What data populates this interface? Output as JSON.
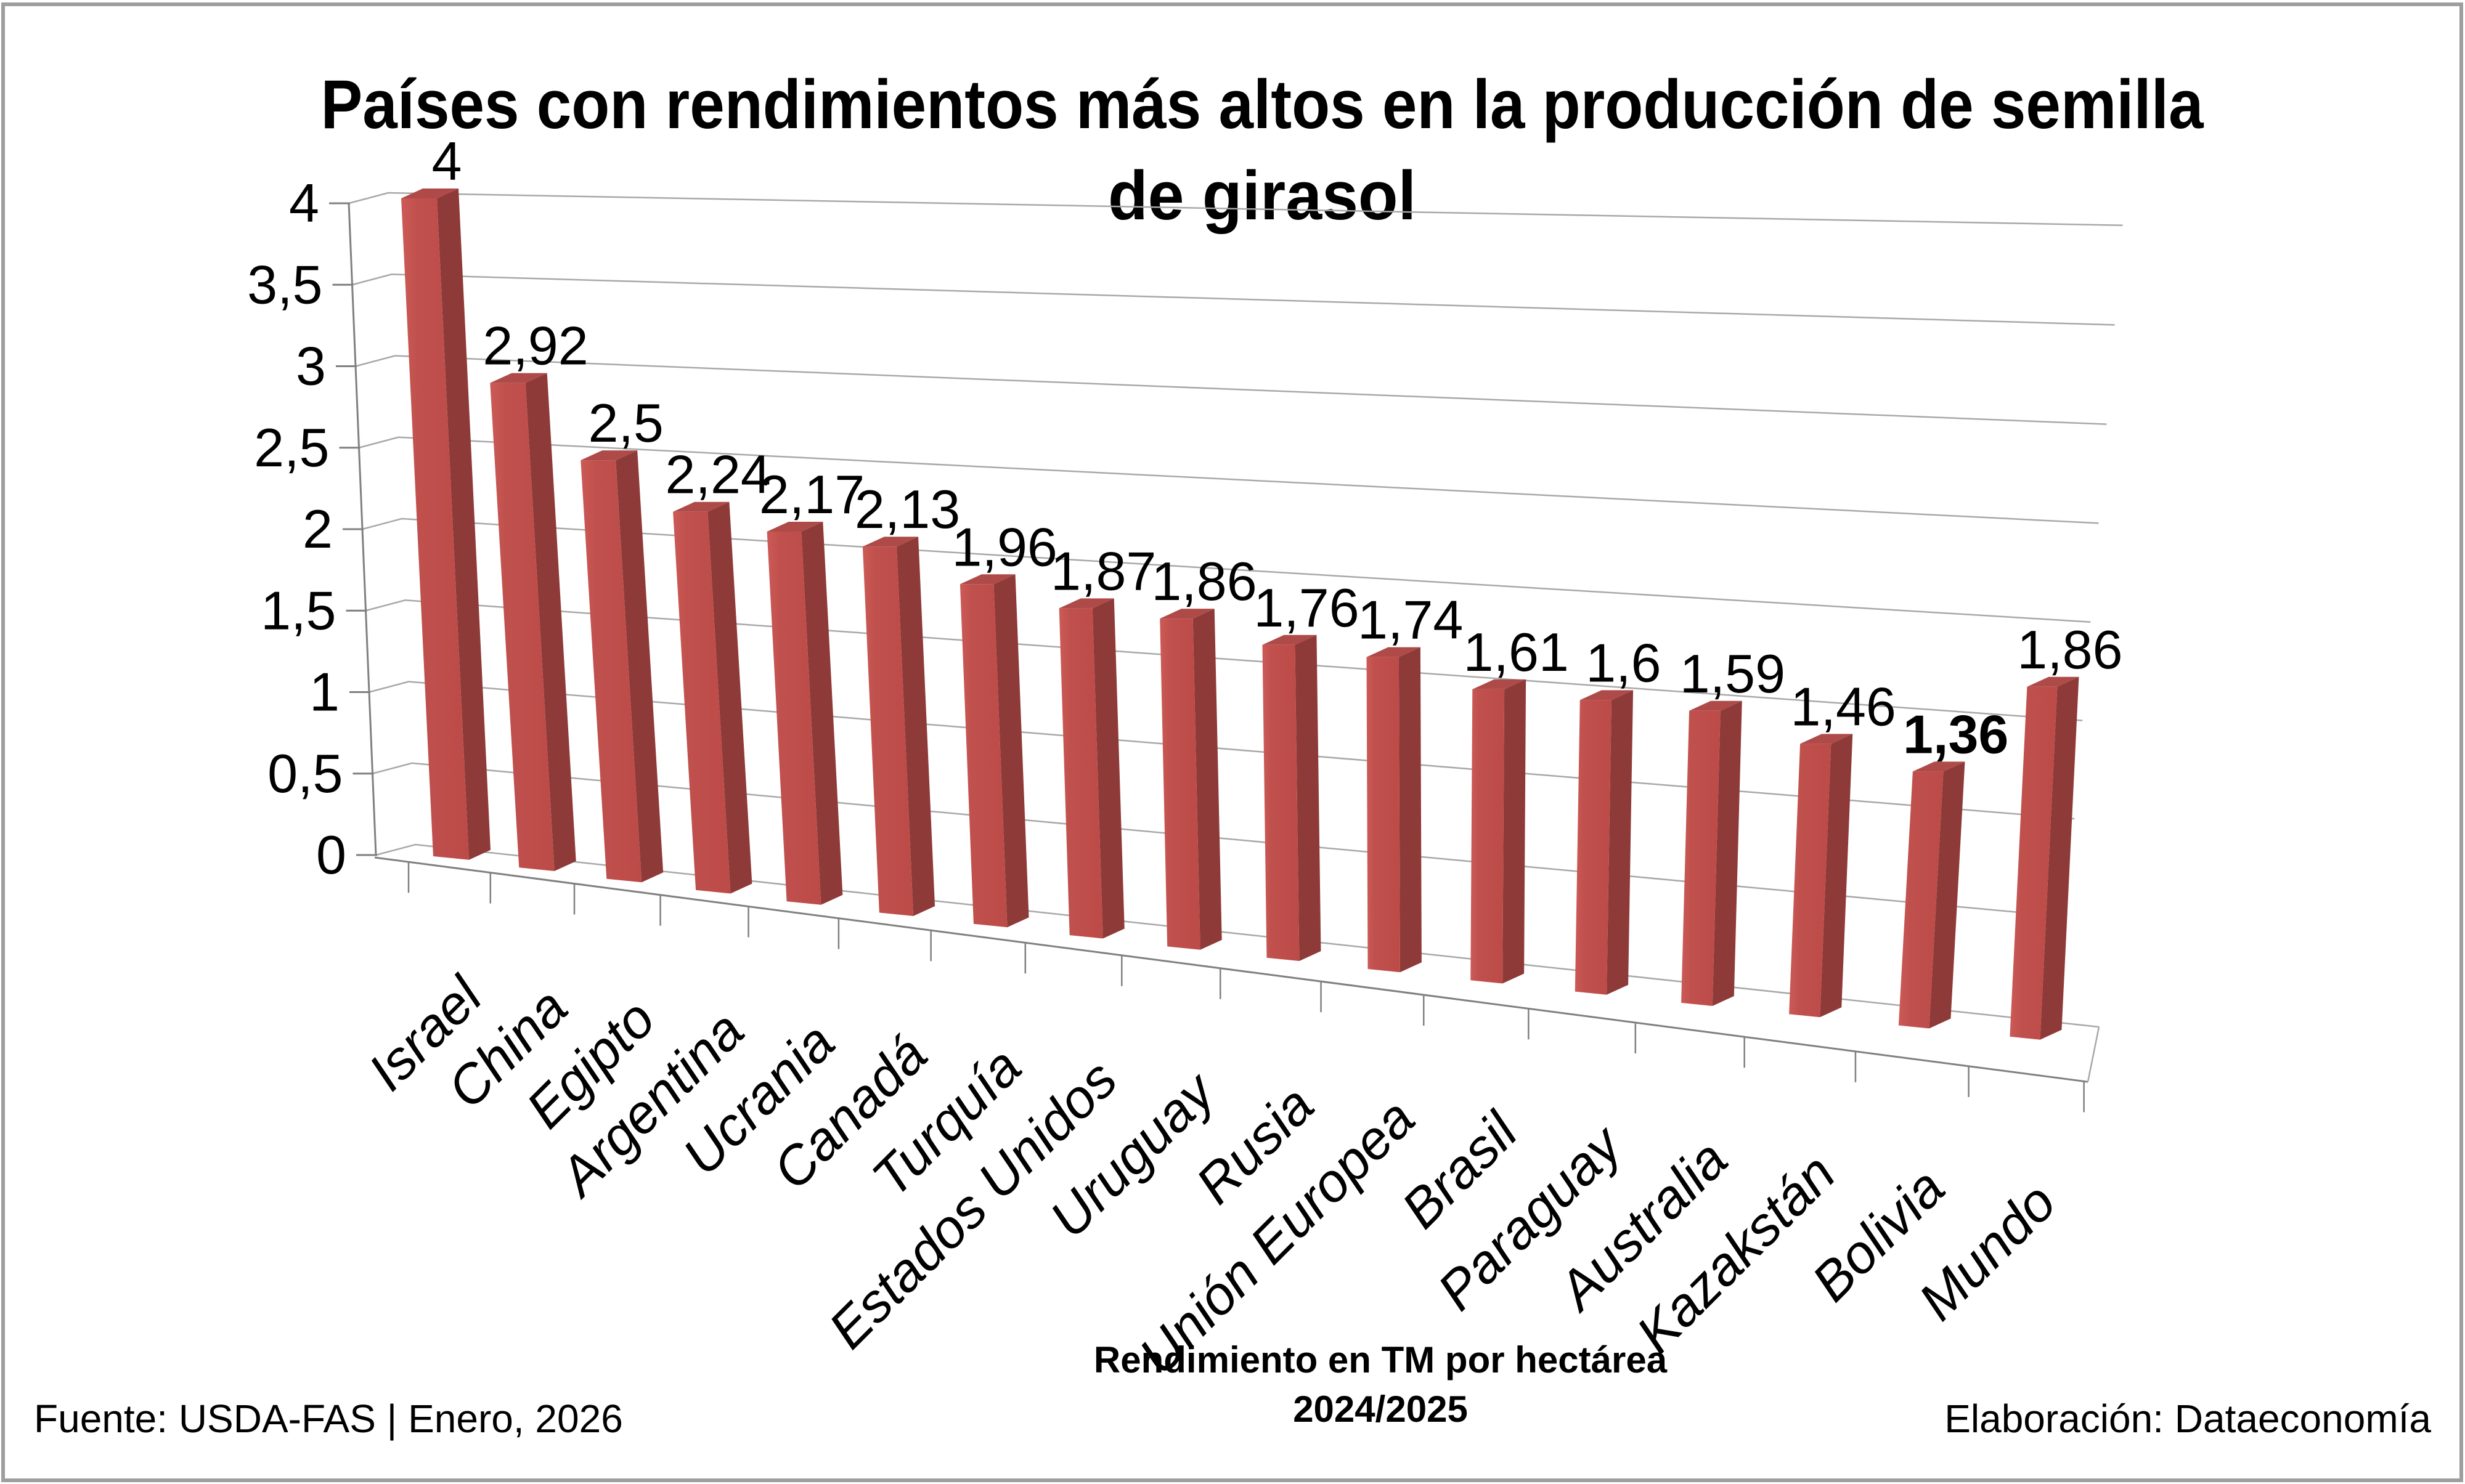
{
  "chart_data": {
    "type": "bar",
    "title_line1": "Países con rendimientos más altos en la producción de semilla",
    "title_line2": "de girasol",
    "categories": [
      "Israel",
      "China",
      "Egipto",
      "Argentina",
      "Ucrania",
      "Canadá",
      "Turquía",
      "Estados Unidos",
      "Uruguay",
      "Rusia",
      "Unión Europea",
      "Brasil",
      "Paraguay",
      "Australia",
      "Kazakstán",
      "Bolivia",
      "Mundo"
    ],
    "values": [
      4,
      2.92,
      2.5,
      2.24,
      2.17,
      2.13,
      1.96,
      1.87,
      1.86,
      1.76,
      1.74,
      1.61,
      1.6,
      1.59,
      1.46,
      1.36,
      1.86
    ],
    "value_labels": [
      "4",
      "2,92",
      "2,5",
      "2,24",
      "2,17",
      "2,13",
      "1,96",
      "1,87",
      "1,86",
      "1,76",
      "1,74",
      "1,61",
      "1,6",
      "1,59",
      "1,46",
      "1,36",
      "1,86"
    ],
    "bold_value_index": 15,
    "y_tick_labels": [
      "4",
      "3,5",
      "3",
      "2,5",
      "2",
      "1,5",
      "1",
      "0,5",
      "0"
    ],
    "ylim": [
      0,
      4
    ],
    "grid_on": true,
    "legend": "none",
    "xlabel_line1": "Rendimiento en TM por hectárea",
    "xlabel_line2": "2024/2025",
    "colors": {
      "bar_front": "#C0504D",
      "bar_front_light": "#CC5A56",
      "bar_side": "#8E3A38",
      "bar_top": "#AE4B48",
      "gridline": "#A8A8A8",
      "axis": "#808080",
      "border": "#9E9E9E",
      "text": "#000000"
    }
  },
  "footer": {
    "source": "Fuente:  USDA-FAS | Enero, 2026",
    "credit": "Elaboración: Dataeconomía"
  }
}
